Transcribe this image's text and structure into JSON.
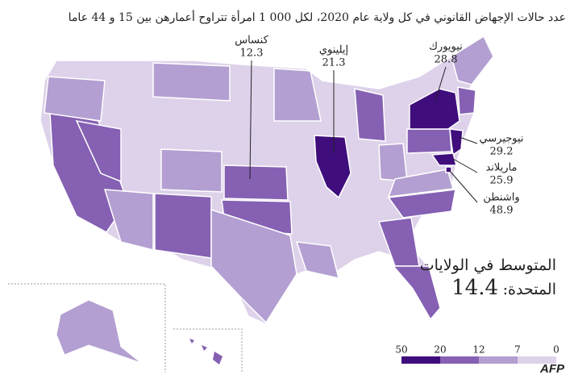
{
  "subtitle": "عدد حالات الإجهاض القانوني في كل ولاية عام 2020، لكل 000 1 امرأة تتراوح أعمارهن بين 15 و 44 عاما",
  "labels": [
    {
      "name": "كنساس",
      "value": 12.3
    },
    {
      "name": "إيلينوي",
      "value": 21.3
    },
    {
      "name": "نيويورك",
      "value": 28.8
    },
    {
      "name": "نيوجيرسي",
      "value": 29.2
    },
    {
      "name": "ماريلاند",
      "value": 25.9
    },
    {
      "name": "واشنطن",
      "value": 48.9
    }
  ],
  "average": {
    "line1": "المتوسط في الولايات",
    "line2": "المتحدة:",
    "value": 14.4
  },
  "legend": {
    "ticks": [
      0,
      7,
      12,
      20,
      50
    ],
    "colors": [
      "#ddd2ea",
      "#b39fd1",
      "#8560b3",
      "#3f0d7c"
    ]
  },
  "credit": "AFP"
}
